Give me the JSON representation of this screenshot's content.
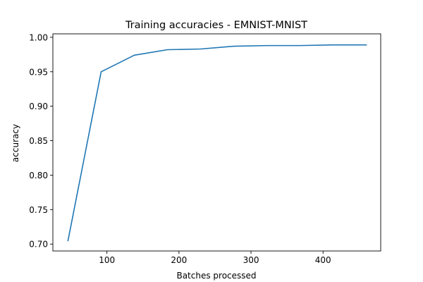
{
  "chart_data": {
    "type": "line",
    "title": "Training accuracies - EMNIST-MNIST",
    "xlabel": "Batches processed",
    "ylabel": "accuracy",
    "xlim": [
      25,
      480
    ],
    "ylim": [
      0.69,
      1.005
    ],
    "xticks": [
      100,
      200,
      300,
      400
    ],
    "yticks": [
      0.7,
      0.75,
      0.8,
      0.85,
      0.9,
      0.95,
      1.0
    ],
    "xtick_labels": [
      "100",
      "200",
      "300",
      "400"
    ],
    "ytick_labels": [
      "0.70",
      "0.75",
      "0.80",
      "0.85",
      "0.90",
      "0.95",
      "1.00"
    ],
    "grid": false,
    "series": [
      {
        "color": "#1f77b4",
        "x": [
          46,
          92,
          138,
          184,
          230,
          276,
          322,
          368,
          414,
          460
        ],
        "y": [
          0.705,
          0.95,
          0.974,
          0.982,
          0.983,
          0.987,
          0.988,
          0.988,
          0.989,
          0.989
        ]
      }
    ]
  }
}
